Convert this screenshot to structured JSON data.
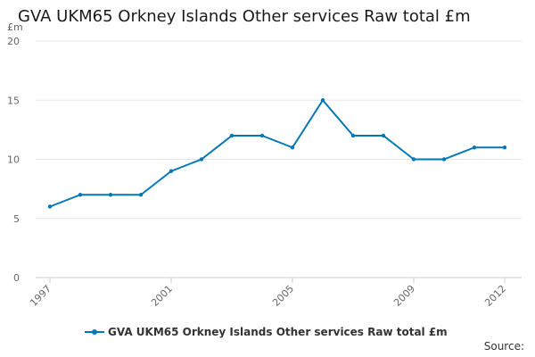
{
  "chart_data": {
    "type": "line",
    "title": "GVA UKM65 Orkney Islands Other services Raw total £m",
    "ylabel": "£m",
    "xlabel": "",
    "ylim": [
      0,
      20
    ],
    "yticks": [
      0,
      5,
      10,
      15,
      20
    ],
    "xlim": [
      1997,
      2012
    ],
    "xticks": [
      1997,
      2001,
      2005,
      2009,
      2012
    ],
    "grid": true,
    "legend_position": "bottom",
    "series": [
      {
        "name": "GVA UKM65 Orkney Islands Other services Raw total £m",
        "color": "#0077b6",
        "x": [
          1997,
          1998,
          1999,
          2000,
          2001,
          2002,
          2003,
          2004,
          2005,
          2006,
          2007,
          2008,
          2009,
          2010,
          2011,
          2012
        ],
        "values": [
          6,
          7,
          7,
          7,
          9,
          10,
          12,
          12,
          11,
          15,
          12,
          12,
          10,
          10,
          11,
          11
        ]
      }
    ]
  },
  "footer": {
    "source_label": "Source:"
  }
}
